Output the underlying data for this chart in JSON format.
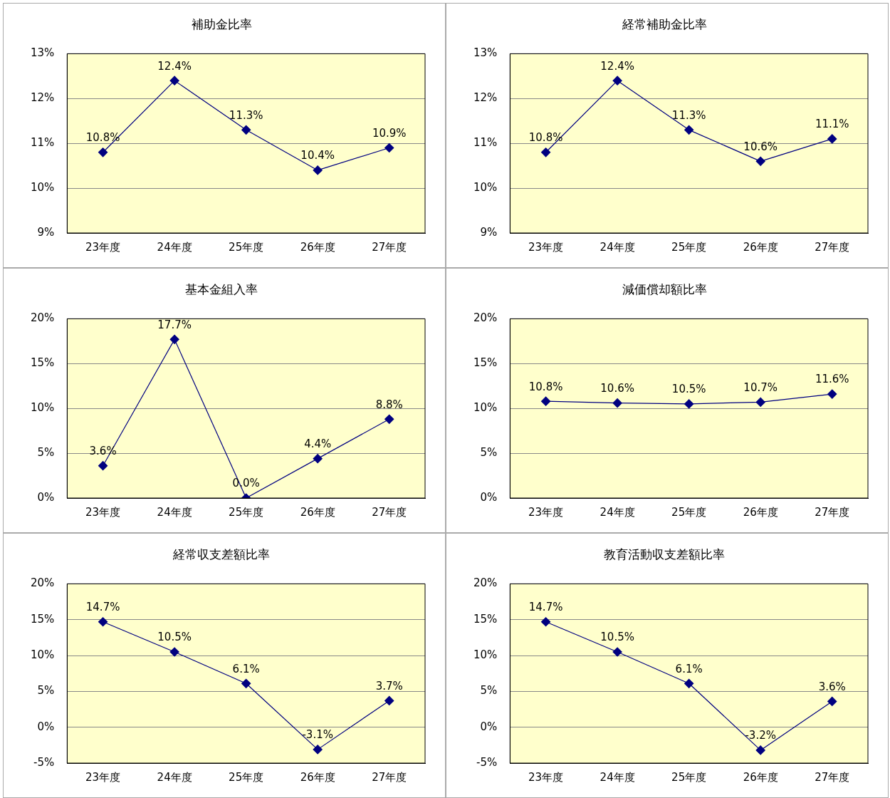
{
  "chart_data": [
    {
      "type": "line",
      "title": "補助金比率",
      "categories": [
        "23年度",
        "24年度",
        "25年度",
        "26年度",
        "27年度"
      ],
      "series": [
        {
          "color": "#000080",
          "values": [
            10.8,
            12.4,
            11.3,
            10.4,
            10.9
          ],
          "value_labels": [
            "10.8%",
            "12.4%",
            "11.3%",
            "10.4%",
            "10.9%"
          ]
        }
      ],
      "ylim": [
        9,
        13
      ],
      "yticks": [
        {
          "value": 9,
          "label": "9%"
        },
        {
          "value": 10,
          "label": "10%"
        },
        {
          "value": 11,
          "label": "11%"
        },
        {
          "value": 12,
          "label": "12%"
        },
        {
          "value": 13,
          "label": "13%"
        }
      ],
      "grid": "y",
      "legend": false,
      "marker": "diamond",
      "line_style": "solid"
    },
    {
      "type": "line",
      "title": "経常補助金比率",
      "categories": [
        "23年度",
        "24年度",
        "25年度",
        "26年度",
        "27年度"
      ],
      "series": [
        {
          "color": "#000080",
          "values": [
            10.8,
            12.4,
            11.3,
            10.6,
            11.1
          ],
          "value_labels": [
            "10.8%",
            "12.4%",
            "11.3%",
            "10.6%",
            "11.1%"
          ]
        }
      ],
      "ylim": [
        9,
        13
      ],
      "yticks": [
        {
          "value": 9,
          "label": "9%"
        },
        {
          "value": 10,
          "label": "10%"
        },
        {
          "value": 11,
          "label": "11%"
        },
        {
          "value": 12,
          "label": "12%"
        },
        {
          "value": 13,
          "label": "13%"
        }
      ],
      "grid": "y",
      "legend": false,
      "marker": "diamond",
      "line_style": "solid"
    },
    {
      "type": "line",
      "title": "基本金組入率",
      "categories": [
        "23年度",
        "24年度",
        "25年度",
        "26年度",
        "27年度"
      ],
      "series": [
        {
          "color": "#000080",
          "values": [
            3.6,
            17.7,
            0.0,
            4.4,
            8.8
          ],
          "value_labels": [
            "3.6%",
            "17.7%",
            "0.0%",
            "4.4%",
            "8.8%"
          ]
        }
      ],
      "ylim": [
        0,
        20
      ],
      "yticks": [
        {
          "value": 0,
          "label": "0%"
        },
        {
          "value": 5,
          "label": "5%"
        },
        {
          "value": 10,
          "label": "10%"
        },
        {
          "value": 15,
          "label": "15%"
        },
        {
          "value": 20,
          "label": "20%"
        }
      ],
      "grid": "y",
      "legend": false,
      "marker": "diamond",
      "line_style": "solid"
    },
    {
      "type": "line",
      "title": "減価償却額比率",
      "categories": [
        "23年度",
        "24年度",
        "25年度",
        "26年度",
        "27年度"
      ],
      "series": [
        {
          "color": "#000080",
          "values": [
            10.8,
            10.6,
            10.5,
            10.7,
            11.6
          ],
          "value_labels": [
            "10.8%",
            "10.6%",
            "10.5%",
            "10.7%",
            "11.6%"
          ]
        }
      ],
      "ylim": [
        0,
        20
      ],
      "yticks": [
        {
          "value": 0,
          "label": "0%"
        },
        {
          "value": 5,
          "label": "5%"
        },
        {
          "value": 10,
          "label": "10%"
        },
        {
          "value": 15,
          "label": "15%"
        },
        {
          "value": 20,
          "label": "20%"
        }
      ],
      "grid": "y",
      "legend": false,
      "marker": "diamond",
      "line_style": "solid"
    },
    {
      "type": "line",
      "title": "経常収支差額比率",
      "categories": [
        "23年度",
        "24年度",
        "25年度",
        "26年度",
        "27年度"
      ],
      "series": [
        {
          "color": "#000080",
          "values": [
            14.7,
            10.5,
            6.1,
            -3.1,
            3.7
          ],
          "value_labels": [
            "14.7%",
            "10.5%",
            "6.1%",
            "-3.1%",
            "3.7%"
          ]
        }
      ],
      "ylim": [
        -5,
        20
      ],
      "yticks": [
        {
          "value": -5,
          "label": "-5%"
        },
        {
          "value": 0,
          "label": "0%"
        },
        {
          "value": 5,
          "label": "5%"
        },
        {
          "value": 10,
          "label": "10%"
        },
        {
          "value": 15,
          "label": "15%"
        },
        {
          "value": 20,
          "label": "20%"
        }
      ],
      "grid": "y",
      "legend": false,
      "marker": "diamond",
      "line_style": "solid"
    },
    {
      "type": "line",
      "title": "教育活動収支差額比率",
      "categories": [
        "23年度",
        "24年度",
        "25年度",
        "26年度",
        "27年度"
      ],
      "series": [
        {
          "color": "#000080",
          "values": [
            14.7,
            10.5,
            6.1,
            -3.2,
            3.6
          ],
          "value_labels": [
            "14.7%",
            "10.5%",
            "6.1%",
            "-3.2%",
            "3.6%"
          ]
        }
      ],
      "ylim": [
        -5,
        20
      ],
      "yticks": [
        {
          "value": -5,
          "label": "-5%"
        },
        {
          "value": 0,
          "label": "0%"
        },
        {
          "value": 5,
          "label": "5%"
        },
        {
          "value": 10,
          "label": "10%"
        },
        {
          "value": 15,
          "label": "15%"
        },
        {
          "value": 20,
          "label": "20%"
        }
      ],
      "grid": "y",
      "legend": false,
      "marker": "diamond",
      "line_style": "solid"
    }
  ]
}
